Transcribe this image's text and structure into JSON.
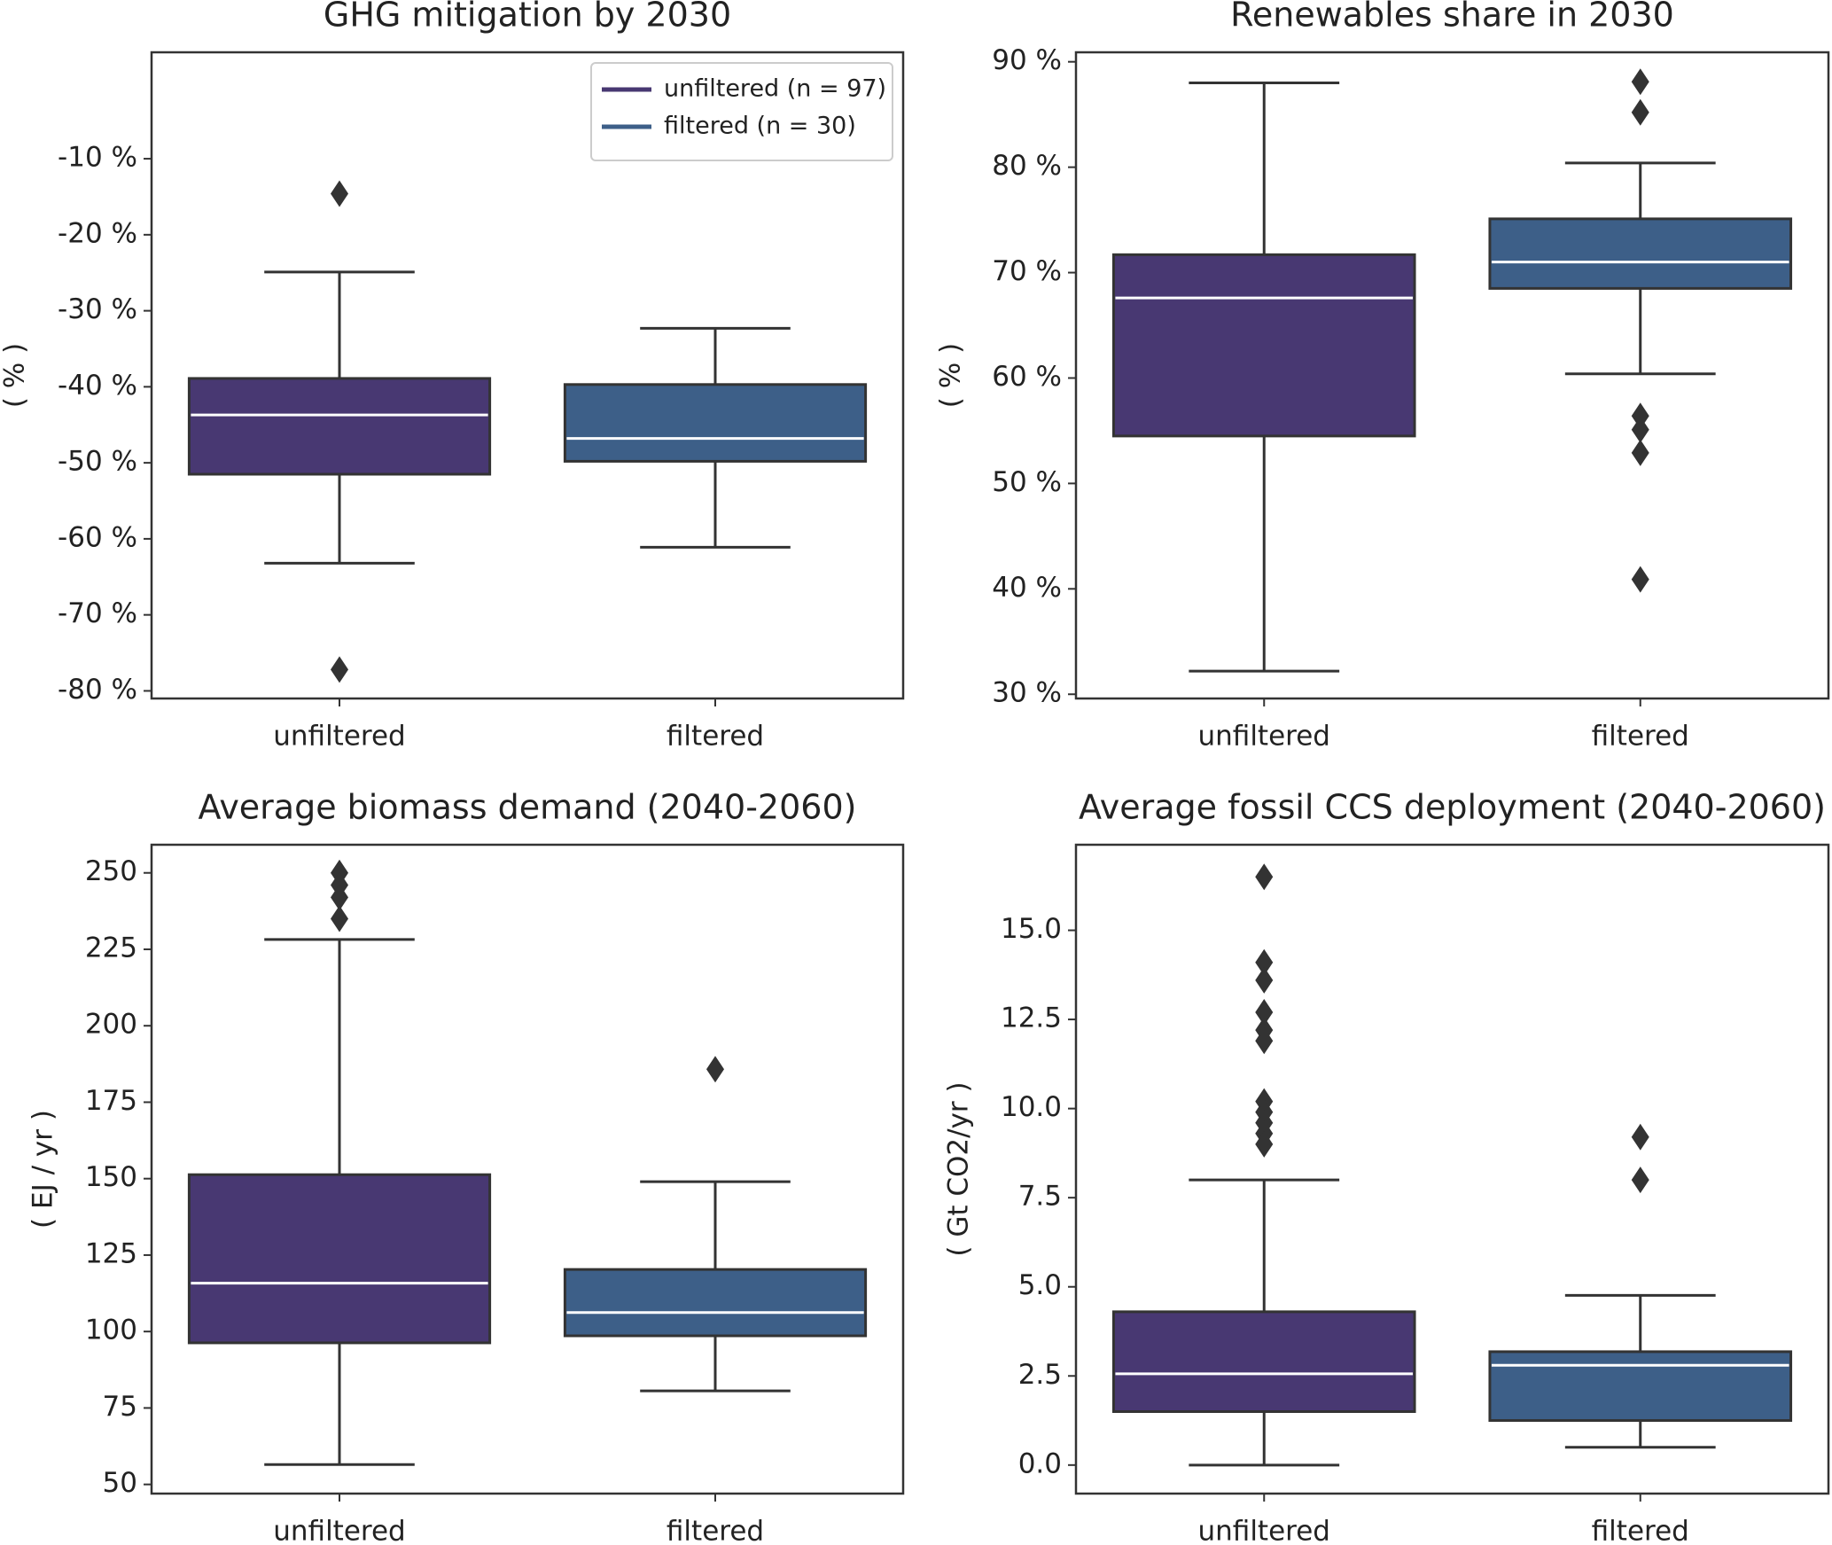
{
  "chart_data": [
    {
      "type": "box",
      "title": "GHG mitigation by 2030",
      "y_label": "( % )",
      "categories": [
        "unfiltered",
        "filtered"
      ],
      "boxes": [
        {
          "color": "#483872",
          "whisker_low": -63.2,
          "q1": -51.5,
          "median": -43.7,
          "q3": -38.9,
          "whisker_high": -24.9,
          "outliers": [
            -14.6,
            -77.2
          ]
        },
        {
          "color": "#3d5f88",
          "whisker_low": -61.1,
          "q1": -49.8,
          "median": -46.8,
          "q3": -39.7,
          "whisker_high": -32.3,
          "outliers": []
        }
      ],
      "legend": {
        "corner": "upper right",
        "labels": [
          "unfiltered (n = 97)",
          "filtered (n = 30)"
        ]
      },
      "ylim": [
        -81,
        4
      ],
      "yticks": [
        {
          "value": -10,
          "label": "-10 %"
        },
        {
          "value": -20,
          "label": "-20 %"
        },
        {
          "value": -30,
          "label": "-30 %"
        },
        {
          "value": -40,
          "label": "-40 %"
        },
        {
          "value": -50,
          "label": "-50 %"
        },
        {
          "value": -60,
          "label": "-60 %"
        },
        {
          "value": -70,
          "label": "-70 %"
        },
        {
          "value": -80,
          "label": "-80 %"
        }
      ]
    },
    {
      "type": "box",
      "title": "Renewables share in 2030",
      "y_label": "( % )",
      "categories": [
        "unfiltered",
        "filtered"
      ],
      "boxes": [
        {
          "color": "#483872",
          "whisker_low": 32.2,
          "q1": 54.5,
          "median": 67.6,
          "q3": 71.7,
          "whisker_high": 88,
          "outliers": []
        },
        {
          "color": "#3d5f88",
          "whisker_low": 60.4,
          "q1": 68.5,
          "median": 71.0,
          "q3": 75.1,
          "whisker_high": 80.4,
          "outliers": [
            88.1,
            85.2,
            56.4,
            55.1,
            52.9,
            40.9
          ]
        }
      ],
      "ylim": [
        29.6,
        90.9
      ],
      "yticks": [
        {
          "value": 30,
          "label": "30 %"
        },
        {
          "value": 40,
          "label": "40 %"
        },
        {
          "value": 50,
          "label": "50 %"
        },
        {
          "value": 60,
          "label": "60 %"
        },
        {
          "value": 70,
          "label": "70 %"
        },
        {
          "value": 80,
          "label": "80 %"
        },
        {
          "value": 90,
          "label": "90 %"
        }
      ]
    },
    {
      "type": "box",
      "title": "Average biomass demand (2040-2060)",
      "y_label": "( EJ / yr )",
      "categories": [
        "unfiltered",
        "filtered"
      ],
      "boxes": [
        {
          "color": "#483872",
          "whisker_low": 56.5,
          "q1": 96.3,
          "median": 115.8,
          "q3": 151.3,
          "whisker_high": 228.2,
          "outliers": [
            250,
            246,
            242,
            235
          ]
        },
        {
          "color": "#3d5f88",
          "whisker_low": 80.6,
          "q1": 98.6,
          "median": 106.2,
          "q3": 120.3,
          "whisker_high": 149,
          "outliers": [
            185.8
          ]
        }
      ],
      "ylim": [
        47,
        259.2
      ],
      "yticks": [
        50,
        75,
        100,
        125,
        150,
        175,
        200,
        225,
        250
      ]
    },
    {
      "type": "box",
      "title": "Average fossil CCS deployment (2040-2060)",
      "y_label": "( Gt CO2/yr )",
      "categories": [
        "unfiltered",
        "filtered"
      ],
      "boxes": [
        {
          "color": "#483872",
          "whisker_low": 0,
          "q1": 1.5,
          "median": 2.56,
          "q3": 4.3,
          "whisker_high": 8.0,
          "outliers": [
            16.5,
            14.1,
            13.6,
            12.7,
            12.2,
            11.9,
            10.2,
            9.9,
            9.6,
            9.3,
            9.0
          ]
        },
        {
          "color": "#3d5f88",
          "whisker_low": 0.5,
          "q1": 1.25,
          "median": 2.8,
          "q3": 3.18,
          "whisker_high": 4.76,
          "outliers": [
            9.2,
            8.0
          ]
        }
      ],
      "ylim": [
        -0.8,
        17.4
      ],
      "yticks": [
        {
          "value": 0,
          "label": "0.0"
        },
        2.5,
        {
          "value": 5,
          "label": "5.0"
        },
        7.5,
        {
          "value": 10,
          "label": "10.0"
        },
        12.5,
        {
          "value": 15,
          "label": "15.0"
        }
      ]
    }
  ]
}
